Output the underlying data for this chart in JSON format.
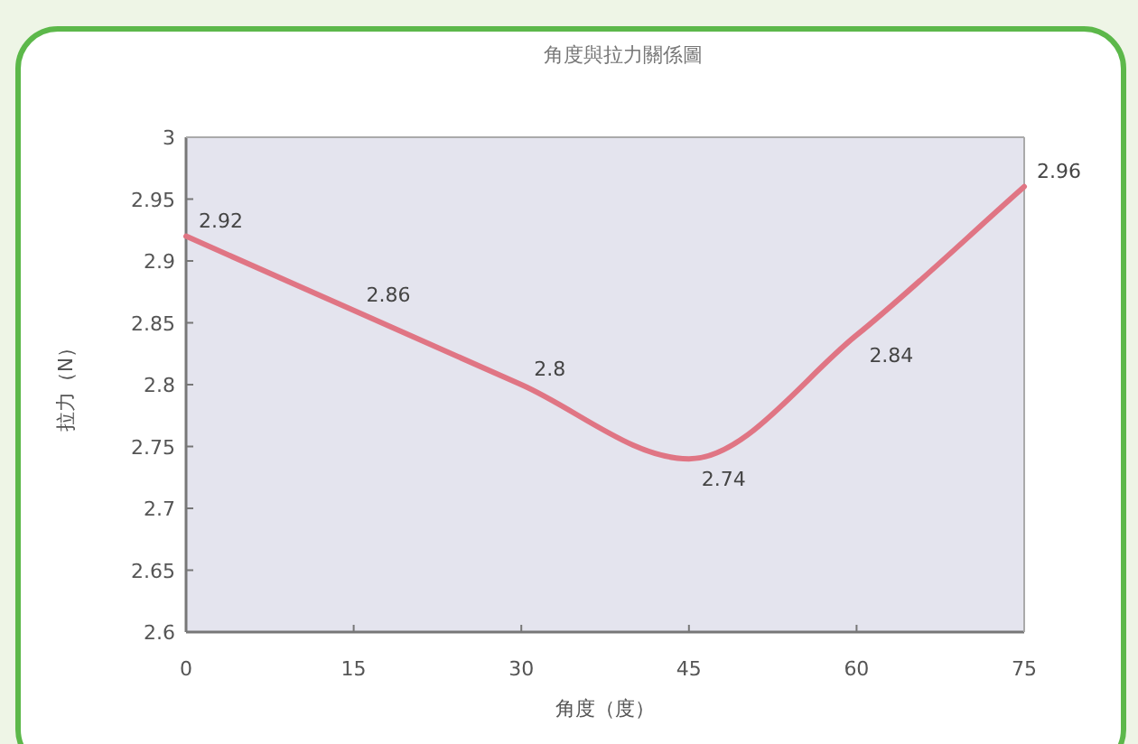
{
  "chart_data": {
    "type": "line",
    "title": "角度與拉力關係圖",
    "xlabel": "角度（度）",
    "ylabel": "拉力（N）",
    "x": [
      0,
      15,
      30,
      45,
      60,
      75
    ],
    "series": [
      {
        "color": "#e07584",
        "values": [
          2.92,
          2.86,
          2.8,
          2.74,
          2.84,
          2.96
        ]
      }
    ],
    "data_labels": true,
    "xlim": [
      0,
      75
    ],
    "xticks": [
      0,
      15,
      30,
      45,
      60,
      75
    ],
    "ylim": [
      2.6,
      3
    ],
    "yticks": [
      2.6,
      2.65,
      2.7,
      2.75,
      2.8,
      2.85,
      2.9,
      2.95,
      3
    ],
    "grid": false,
    "marker": "none",
    "line_style": "solid"
  }
}
